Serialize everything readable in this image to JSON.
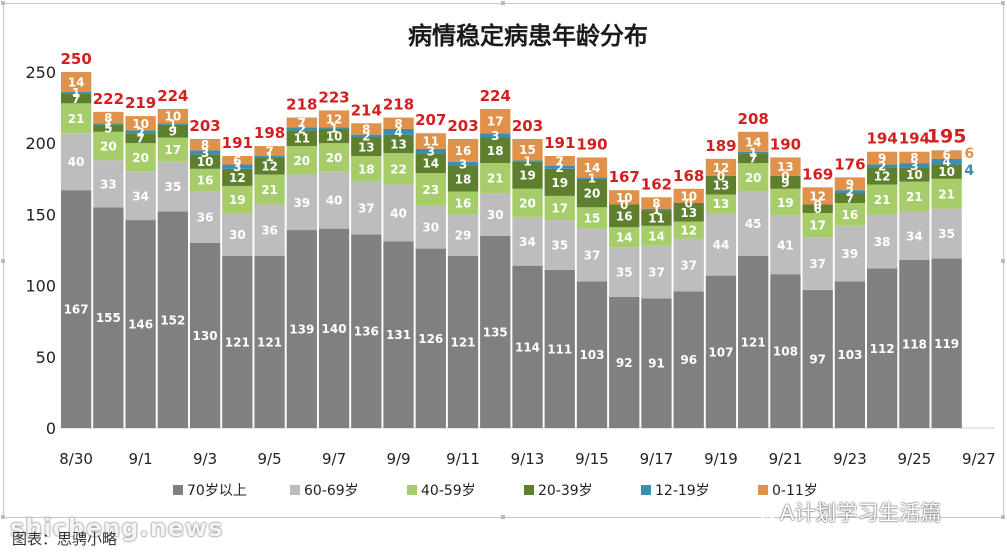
{
  "chart_data": {
    "type": "bar",
    "stacked": true,
    "title": "病情稳定病患年龄分布",
    "xlabel": "",
    "ylabel": "",
    "ylim": [
      0,
      250
    ],
    "yticks": [
      0,
      50,
      100,
      150,
      200,
      250
    ],
    "grid": false,
    "legend_position": "bottom",
    "categories": [
      "8/30",
      "8/31",
      "9/1",
      "9/2",
      "9/3",
      "9/4",
      "9/5",
      "9/6",
      "9/7",
      "9/8",
      "9/9",
      "9/10",
      "9/11",
      "9/12",
      "9/13",
      "9/14",
      "9/15",
      "9/16",
      "9/17",
      "9/18",
      "9/19",
      "9/20",
      "9/21",
      "9/22",
      "9/23",
      "9/24",
      "9/25",
      "9/26",
      "9/27"
    ],
    "x_tick_labels": [
      "8/30",
      "",
      "9/1",
      "",
      "9/3",
      "",
      "9/5",
      "",
      "9/7",
      "",
      "9/9",
      "",
      "9/11",
      "",
      "9/13",
      "",
      "9/15",
      "",
      "9/17",
      "",
      "9/19",
      "",
      "9/21",
      "",
      "9/23",
      "",
      "9/25",
      "",
      "9/27"
    ],
    "series": [
      {
        "name": "70岁以上",
        "color": "#808080",
        "label_color": "#ffffff",
        "values": [
          167,
          155,
          146,
          152,
          130,
          121,
          121,
          139,
          140,
          136,
          131,
          126,
          121,
          135,
          114,
          111,
          103,
          92,
          91,
          96,
          107,
          121,
          108,
          97,
          103,
          112,
          118,
          119,
          null
        ]
      },
      {
        "name": "60-69岁",
        "color": "#bdbdbd",
        "label_color": "#ffffff",
        "values": [
          40,
          33,
          34,
          35,
          36,
          30,
          36,
          39,
          40,
          37,
          40,
          30,
          29,
          30,
          34,
          35,
          37,
          35,
          37,
          37,
          44,
          45,
          41,
          37,
          39,
          38,
          34,
          35,
          null
        ]
      },
      {
        "name": "40-59岁",
        "color": "#a6cd6a",
        "label_color": "#ffffff",
        "values": [
          21,
          20,
          20,
          17,
          16,
          19,
          21,
          20,
          20,
          18,
          22,
          23,
          16,
          21,
          20,
          17,
          15,
          14,
          14,
          12,
          13,
          20,
          19,
          17,
          16,
          21,
          21,
          21,
          null
        ]
      },
      {
        "name": "20-39岁",
        "color": "#5e7f2d",
        "label_color": "#ffffff",
        "values": [
          7,
          5,
          7,
          9,
          10,
          12,
          12,
          11,
          10,
          13,
          13,
          14,
          18,
          18,
          19,
          19,
          20,
          16,
          11,
          13,
          13,
          7,
          9,
          6,
          7,
          12,
          10,
          10,
          null
        ]
      },
      {
        "name": "12-19岁",
        "color": "#3a8fb0",
        "label_color": "#ffffff",
        "values": [
          1,
          1,
          2,
          1,
          3,
          3,
          1,
          2,
          1,
          2,
          4,
          3,
          3,
          3,
          1,
          2,
          1,
          0,
          1,
          0,
          0,
          1,
          0,
          0,
          2,
          2,
          3,
          4,
          null
        ]
      },
      {
        "name": "0-11岁",
        "color": "#e0914a",
        "label_color": "#ffffff",
        "values": [
          14,
          8,
          10,
          10,
          8,
          6,
          7,
          7,
          12,
          8,
          8,
          11,
          16,
          17,
          15,
          7,
          14,
          10,
          8,
          10,
          12,
          14,
          13,
          12,
          9,
          9,
          8,
          6,
          null
        ]
      }
    ],
    "totals": [
      250,
      222,
      219,
      224,
      203,
      191,
      198,
      218,
      223,
      214,
      218,
      207,
      203,
      224,
      203,
      191,
      190,
      167,
      162,
      168,
      189,
      208,
      190,
      169,
      176,
      194,
      194,
      195,
      null
    ],
    "extra_labels": [
      {
        "category": "9/27",
        "text": "6",
        "color": "#e0914a"
      },
      {
        "category": "9/27",
        "text": "4",
        "color": "#3a8fb0"
      }
    ]
  },
  "caption": "图表：思骋小略",
  "watermark_left": "shicheng.news",
  "watermark_right": "A计划学习生活篇"
}
